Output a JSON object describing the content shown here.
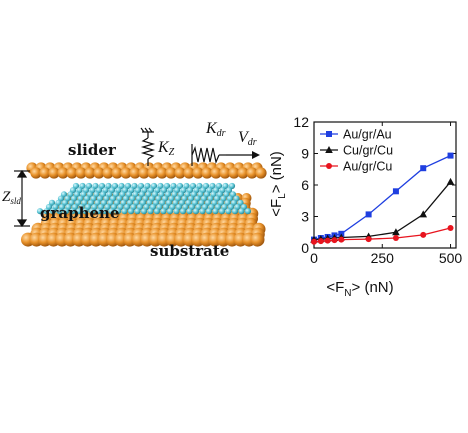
{
  "schematic": {
    "slider_label": "slider",
    "graphene_label": "graphene",
    "substrate_label": "substrate",
    "kz_main": "K",
    "kz_sub": "Z",
    "kdr_main": "K",
    "kdr_sub": "dr",
    "vdr_main": "V",
    "vdr_sub": "dr",
    "zsld_main": "Z",
    "zsld_sub": "sld",
    "colors": {
      "slider": "#e8922a",
      "graphene": "#5fc8d8",
      "substrate": "#e8922a"
    }
  },
  "chart_data": {
    "type": "line",
    "x_label_prefix": "<F",
    "x_label_sub": "N",
    "x_label_suffix": "> (nN)",
    "y_label_prefix": "<F",
    "y_label_sub": "L",
    "y_label_suffix": "> (nN)",
    "xlim": [
      0,
      520
    ],
    "ylim": [
      0,
      12
    ],
    "x_ticks": [
      0,
      250,
      500
    ],
    "x_tick_labels": [
      "0",
      "250",
      "500"
    ],
    "y_ticks": [
      0,
      3,
      6,
      9,
      12
    ],
    "y_tick_labels": [
      "0",
      "3",
      "6",
      "9",
      "12"
    ],
    "legend_position": "top-left",
    "series": [
      {
        "name": "Au/gr/Au",
        "color": "#1f3fe0",
        "marker": "square",
        "x": [
          0,
          25,
          50,
          75,
          100,
          200,
          300,
          400,
          500
        ],
        "y": [
          0.8,
          0.95,
          1.05,
          1.2,
          1.35,
          3.2,
          5.4,
          7.6,
          8.8
        ]
      },
      {
        "name": "Cu/gr/Cu",
        "color": "#111111",
        "marker": "triangle",
        "x": [
          0,
          25,
          50,
          75,
          100,
          200,
          300,
          400,
          500
        ],
        "y": [
          0.8,
          0.85,
          0.9,
          0.95,
          1.0,
          1.1,
          1.5,
          3.2,
          6.3
        ]
      },
      {
        "name": "Au/gr/Cu",
        "color": "#e8141e",
        "marker": "circle",
        "x": [
          0,
          25,
          50,
          75,
          100,
          200,
          300,
          400,
          500
        ],
        "y": [
          0.6,
          0.65,
          0.7,
          0.75,
          0.8,
          0.85,
          0.95,
          1.25,
          1.9
        ]
      }
    ]
  }
}
